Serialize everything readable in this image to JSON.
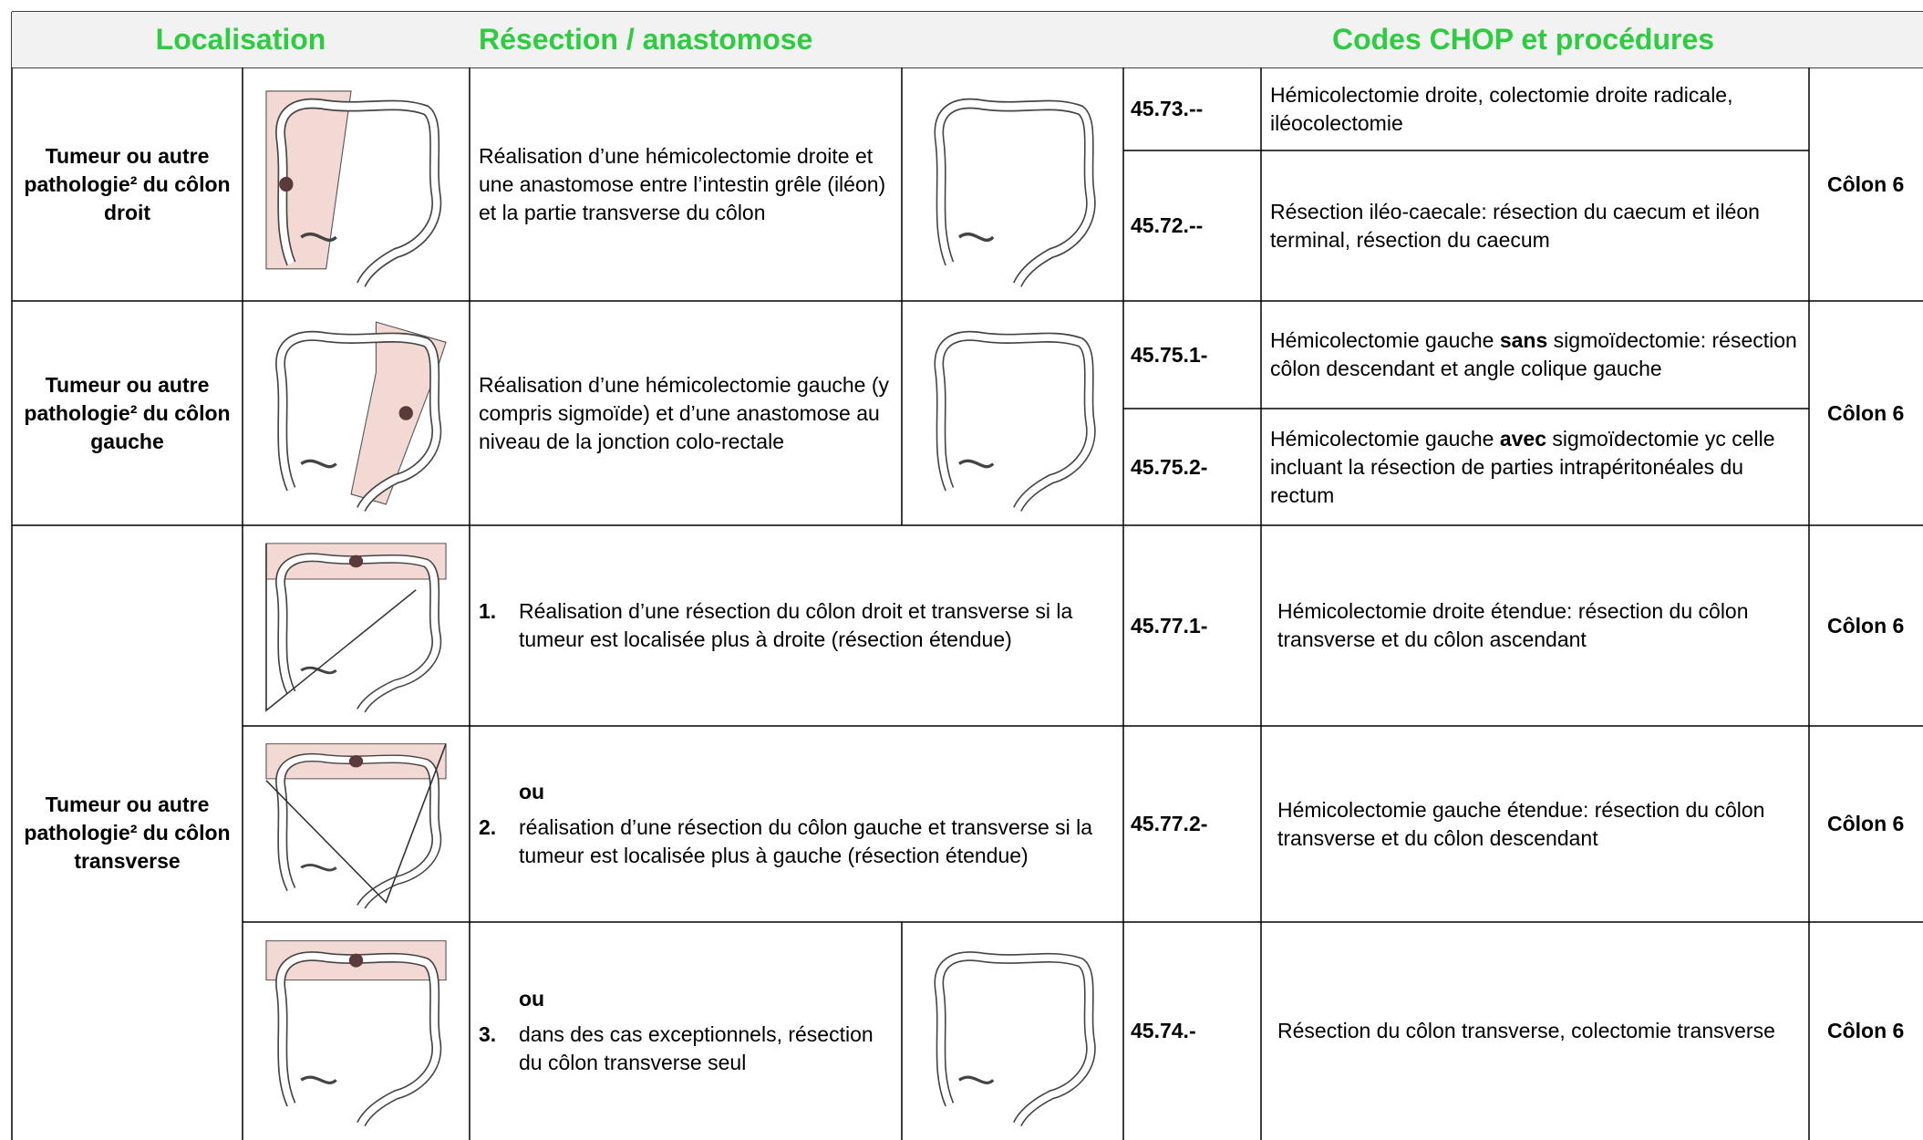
{
  "header": [
    "Localisation",
    "Résection / anastomose",
    "Codes CHOP et procédures"
  ],
  "rows": [
    {
      "localisation": "Tumeur ou autre pathologie² du côlon droit",
      "resection": "Réalisation d’une hémicolectomie droite et une anastomose entre l’intestin grêle (iléon) et la partie transverse du côlon",
      "codes": [
        {
          "code": "45.73.--",
          "description": [
            "Hémicolectomie droite, colectomie droite radicale, iléocolectomie"
          ]
        },
        {
          "code": "45.72.--",
          "description": [
            "Résection iléo-caecale: résection du caecum et iléon terminal, résection du caecum"
          ]
        }
      ],
      "group": "Côlon 6"
    },
    {
      "localisation": "Tumeur ou autre pathologie² du côlon gauche",
      "resection": "Réalisation d’une hémicolectomie gauche (y compris sigmoïde) et d’une anastomose au niveau de la jonction colo-rectale",
      "codes": [
        {
          "code": "45.75.1-",
          "description": [
            "Hémicolectomie gauche ",
            "sans",
            " sigmoïdectomie: résection côlon descendant et angle colique gauche"
          ]
        },
        {
          "code": "45.75.2-",
          "description": [
            "Hémicolectomie gauche ",
            "avec",
            " sigmoïdectomie yc celle incluant la résection de parties intrapéritonéales du rectum"
          ]
        }
      ],
      "group": "Côlon 6"
    }
  ],
  "transverse": {
    "localisation": "Tumeur ou autre pathologie² du côlon transverse",
    "options": [
      {
        "number": "1.",
        "text": "Réalisation d’une résection du côlon droit et transverse si la tumeur est localisée plus à droite (résection étendue)",
        "code": "45.77.1-",
        "description": "Hémicolectomie droite étendue: résection du côlon transverse et du côlon ascendant",
        "group": "Côlon 6"
      },
      {
        "lead": "ou",
        "number": "2.",
        "text": "réalisation d’une résection du côlon gauche et transverse si la tumeur est localisée plus à gauche (résection étendue)",
        "code": "45.77.2-",
        "description": "Hémicolectomie gauche étendue: résection du côlon transverse et du côlon descendant",
        "group": "Côlon 6"
      },
      {
        "lead": "ou",
        "number": "3.",
        "text": "dans des cas exceptionnels, résection du côlon transverse seul",
        "code": "45.74.-",
        "description": "Résection du côlon transverse, colectomie transverse",
        "group": "Côlon 6"
      }
    ]
  }
}
